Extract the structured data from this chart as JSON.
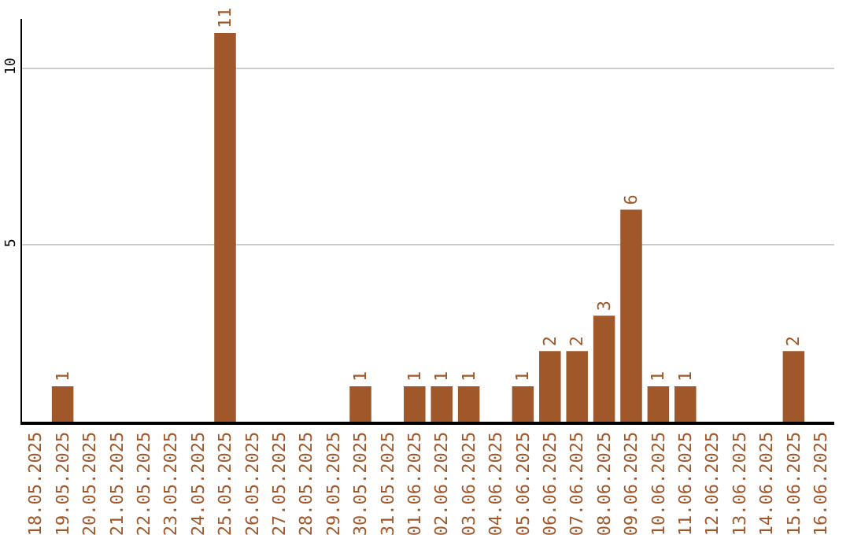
{
  "chart_data": {
    "type": "bar",
    "categories": [
      "18.05.2025",
      "19.05.2025",
      "20.05.2025",
      "21.05.2025",
      "22.05.2025",
      "23.05.2025",
      "24.05.2025",
      "25.05.2025",
      "26.05.2025",
      "27.05.2025",
      "28.05.2025",
      "29.05.2025",
      "30.05.2025",
      "31.05.2025",
      "01.06.2025",
      "02.06.2025",
      "03.06.2025",
      "04.06.2025",
      "05.06.2025",
      "06.06.2025",
      "07.06.2025",
      "08.06.2025",
      "09.06.2025",
      "10.06.2025",
      "11.06.2025",
      "12.06.2025",
      "13.06.2025",
      "14.06.2025",
      "15.06.2025",
      "16.06.2025"
    ],
    "values": [
      0,
      1,
      0,
      0,
      0,
      0,
      0,
      11,
      0,
      0,
      0,
      0,
      1,
      0,
      1,
      1,
      1,
      0,
      1,
      2,
      2,
      3,
      6,
      1,
      1,
      0,
      0,
      0,
      2,
      0
    ],
    "value_labels": [
      null,
      "1",
      null,
      null,
      null,
      null,
      null,
      "11",
      null,
      null,
      null,
      null,
      "1",
      null,
      "1",
      "1",
      "1",
      null,
      "1",
      "2",
      "2",
      "3",
      "6",
      "1",
      "1",
      null,
      null,
      null,
      "2",
      null
    ],
    "color": "#a0572a",
    "ylim": [
      0,
      11.4
    ],
    "yticks": [
      5,
      10
    ],
    "grid": "y",
    "legend": false
  }
}
